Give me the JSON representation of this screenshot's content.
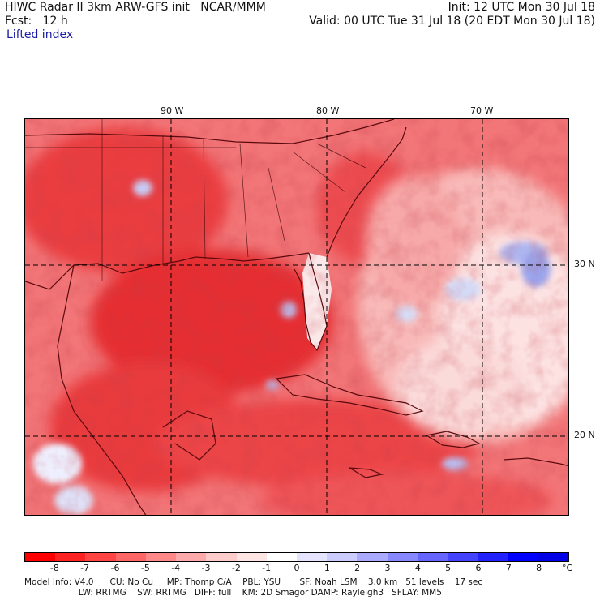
{
  "header": {
    "title_left": "HIWC Radar II 3km ARW-GFS init   NCAR/MMM",
    "init": "Init: 12 UTC Mon 30 Jul 18",
    "fcst": "Fcst:   12 h",
    "valid": "Valid: 00 UTC Tue 31 Jul 18 (20 EDT Mon 30 Jul 18)",
    "field_name": "Lifted index"
  },
  "map": {
    "longitude_labels": [
      "90 W",
      "80 W",
      "70 W"
    ],
    "latitude_labels": [
      "30 N",
      "20 N"
    ],
    "colors": {
      "strong_neg": "#e8262a",
      "mid_neg": "#f06a6c",
      "weak_neg": "#f9b3b2",
      "neutral": "#ffffff",
      "weak_pos": "#cfd6f6",
      "pos": "#9aa6ee",
      "contour": "#7a0e12"
    }
  },
  "colorbar": {
    "colors": [
      "#ff0000",
      "#ff2222",
      "#ff4444",
      "#ff6666",
      "#ff8888",
      "#ffaaaa",
      "#ffcccc",
      "#ffe4e4",
      "#ffffff",
      "#e4e4ff",
      "#ccccff",
      "#aaaaff",
      "#8888ff",
      "#6666ff",
      "#4444ff",
      "#2222ff",
      "#0000ff",
      "#0000e6"
    ],
    "ticks": [
      "-8",
      "-7",
      "-6",
      "-5",
      "-4",
      "-3",
      "-2",
      "-1",
      "0",
      "1",
      "2",
      "3",
      "4",
      "5",
      "6",
      "7",
      "8"
    ],
    "unit": "°C"
  },
  "footer": {
    "line1": "Model Info: V4.0      CU: No Cu     MP: Thomp C/A    PBL: YSU       SF: Noah LSM    3.0 km   51 levels    17 sec",
    "line2": "                    LW: RRTMG    SW: RRTMG   DIFF: full    KM: 2D Smagor DAMP: Rayleigh3   SFLAY: MM5"
  }
}
